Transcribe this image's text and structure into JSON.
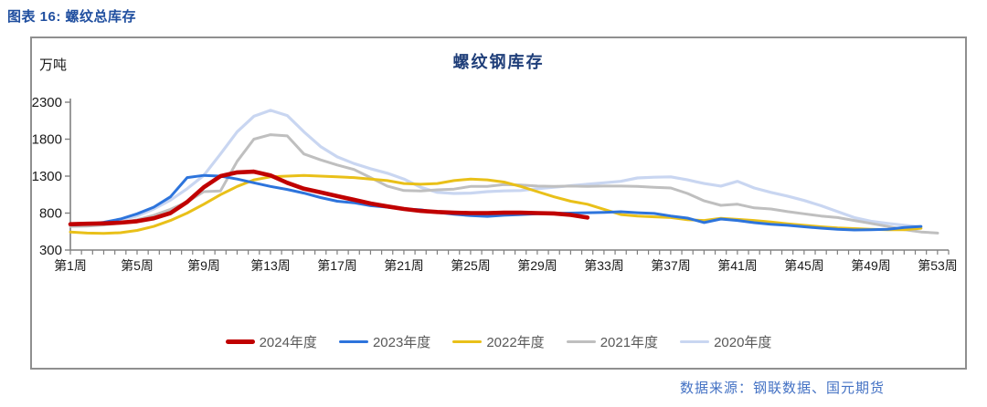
{
  "page": {
    "header": "图表 16: 螺纹总库存",
    "source": "数据来源：钢联数据、国元期货"
  },
  "chart_data": {
    "type": "line",
    "title": "螺纹钢库存",
    "unit_label": "万吨",
    "x_axis": {
      "tick_labels": [
        "第1周",
        "第5周",
        "第9周",
        "第13周",
        "第17周",
        "第21周",
        "第25周",
        "第29周",
        "第33周",
        "第37周",
        "第41周",
        "第45周",
        "第49周",
        "第53周"
      ],
      "label_weeks": [
        1,
        5,
        9,
        13,
        17,
        21,
        25,
        29,
        33,
        37,
        41,
        45,
        49,
        53
      ],
      "weeks_total": 53
    },
    "y_axis": {
      "ticks": [
        300,
        800,
        1300,
        1800,
        2300
      ],
      "ylim": [
        300,
        2300
      ]
    },
    "grid": false,
    "legend_position": "bottom",
    "colors": {
      "accent_red": "#C00000",
      "blue": "#2D74DC",
      "yellow": "#E9C019",
      "gray": "#BFBFBF",
      "light_blue": "#C9D6F1"
    },
    "series": [
      {
        "name": "2024年度",
        "color": "#C00000",
        "width": 4.6,
        "values": [
          650,
          655,
          660,
          670,
          690,
          730,
          800,
          950,
          1150,
          1300,
          1350,
          1360,
          1310,
          1210,
          1130,
          1080,
          1030,
          980,
          930,
          890,
          855,
          830,
          815,
          805,
          800,
          800,
          805,
          805,
          800,
          795,
          775,
          740,
          null,
          null,
          null,
          null,
          null,
          null,
          null,
          null,
          null,
          null,
          null,
          null,
          null,
          null,
          null,
          null,
          null,
          null,
          null,
          null,
          null
        ]
      },
      {
        "name": "2023年度",
        "color": "#2D74DC",
        "width": 3,
        "values": [
          640,
          650,
          675,
          720,
          790,
          880,
          1020,
          1280,
          1310,
          1300,
          1260,
          1210,
          1160,
          1120,
          1070,
          1010,
          960,
          940,
          900,
          880,
          855,
          845,
          810,
          785,
          765,
          755,
          770,
          780,
          790,
          795,
          800,
          805,
          810,
          818,
          805,
          795,
          760,
          732,
          672,
          720,
          700,
          670,
          650,
          635,
          615,
          596,
          580,
          572,
          575,
          580,
          605,
          620,
          null
        ]
      },
      {
        "name": "2022年度",
        "color": "#E9C019",
        "width": 3,
        "values": [
          545,
          530,
          525,
          535,
          565,
          620,
          700,
          800,
          920,
          1050,
          1160,
          1250,
          1290,
          1300,
          1310,
          1300,
          1290,
          1280,
          1260,
          1240,
          1200,
          1190,
          1200,
          1240,
          1260,
          1250,
          1220,
          1160,
          1090,
          1020,
          960,
          920,
          850,
          780,
          760,
          750,
          740,
          710,
          700,
          730,
          715,
          700,
          680,
          655,
          635,
          615,
          600,
          590,
          580,
          575,
          575,
          595,
          null
        ]
      },
      {
        "name": "2021年度",
        "color": "#BFBFBF",
        "width": 3,
        "values": [
          620,
          625,
          640,
          665,
          710,
          770,
          850,
          950,
          1090,
          1100,
          1500,
          1800,
          1860,
          1845,
          1600,
          1520,
          1450,
          1390,
          1280,
          1165,
          1105,
          1100,
          1115,
          1125,
          1160,
          1160,
          1185,
          1180,
          1165,
          1160,
          1165,
          1160,
          1165,
          1165,
          1160,
          1150,
          1140,
          1065,
          965,
          905,
          920,
          870,
          855,
          820,
          790,
          760,
          740,
          700,
          660,
          620,
          575,
          545,
          530
        ]
      },
      {
        "name": "2020年度",
        "color": "#C9D6F1",
        "width": 3.2,
        "values": [
          630,
          645,
          665,
          705,
          760,
          855,
          975,
          1130,
          1310,
          1600,
          1900,
          2110,
          2190,
          2120,
          1900,
          1700,
          1560,
          1470,
          1400,
          1340,
          1260,
          1150,
          1080,
          1065,
          1070,
          1090,
          1100,
          1105,
          1130,
          1150,
          1170,
          1190,
          1210,
          1230,
          1275,
          1285,
          1290,
          1250,
          1200,
          1165,
          1230,
          1140,
          1080,
          1030,
          970,
          900,
          820,
          740,
          690,
          660,
          635,
          612,
          null
        ]
      }
    ]
  }
}
